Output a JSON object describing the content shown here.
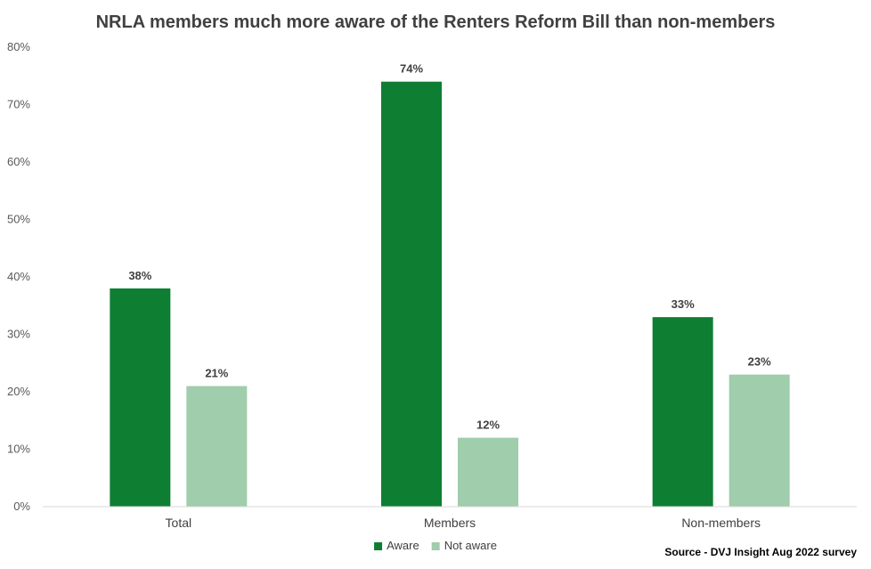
{
  "chart_data": {
    "type": "bar",
    "title": "NRLA members much more aware of the Renters Reform Bill than non-members",
    "categories": [
      "Total",
      "Members",
      "Non-members"
    ],
    "series": [
      {
        "name": "Aware",
        "values": [
          38,
          74,
          33
        ],
        "labels": [
          "38%",
          "74%",
          "33%"
        ],
        "color": "#0e7e33"
      },
      {
        "name": "Not aware",
        "values": [
          21,
          12,
          23
        ],
        "labels": [
          "21%",
          "12%",
          "23%"
        ],
        "color": "#a0cdac"
      }
    ],
    "ylim": [
      0,
      80
    ],
    "yticks": [
      "0%",
      "10%",
      "20%",
      "30%",
      "40%",
      "50%",
      "60%",
      "70%",
      "80%"
    ],
    "grid": false,
    "legend_position": "bottom",
    "source": "Source - DVJ Insight  Aug 2022 survey"
  }
}
